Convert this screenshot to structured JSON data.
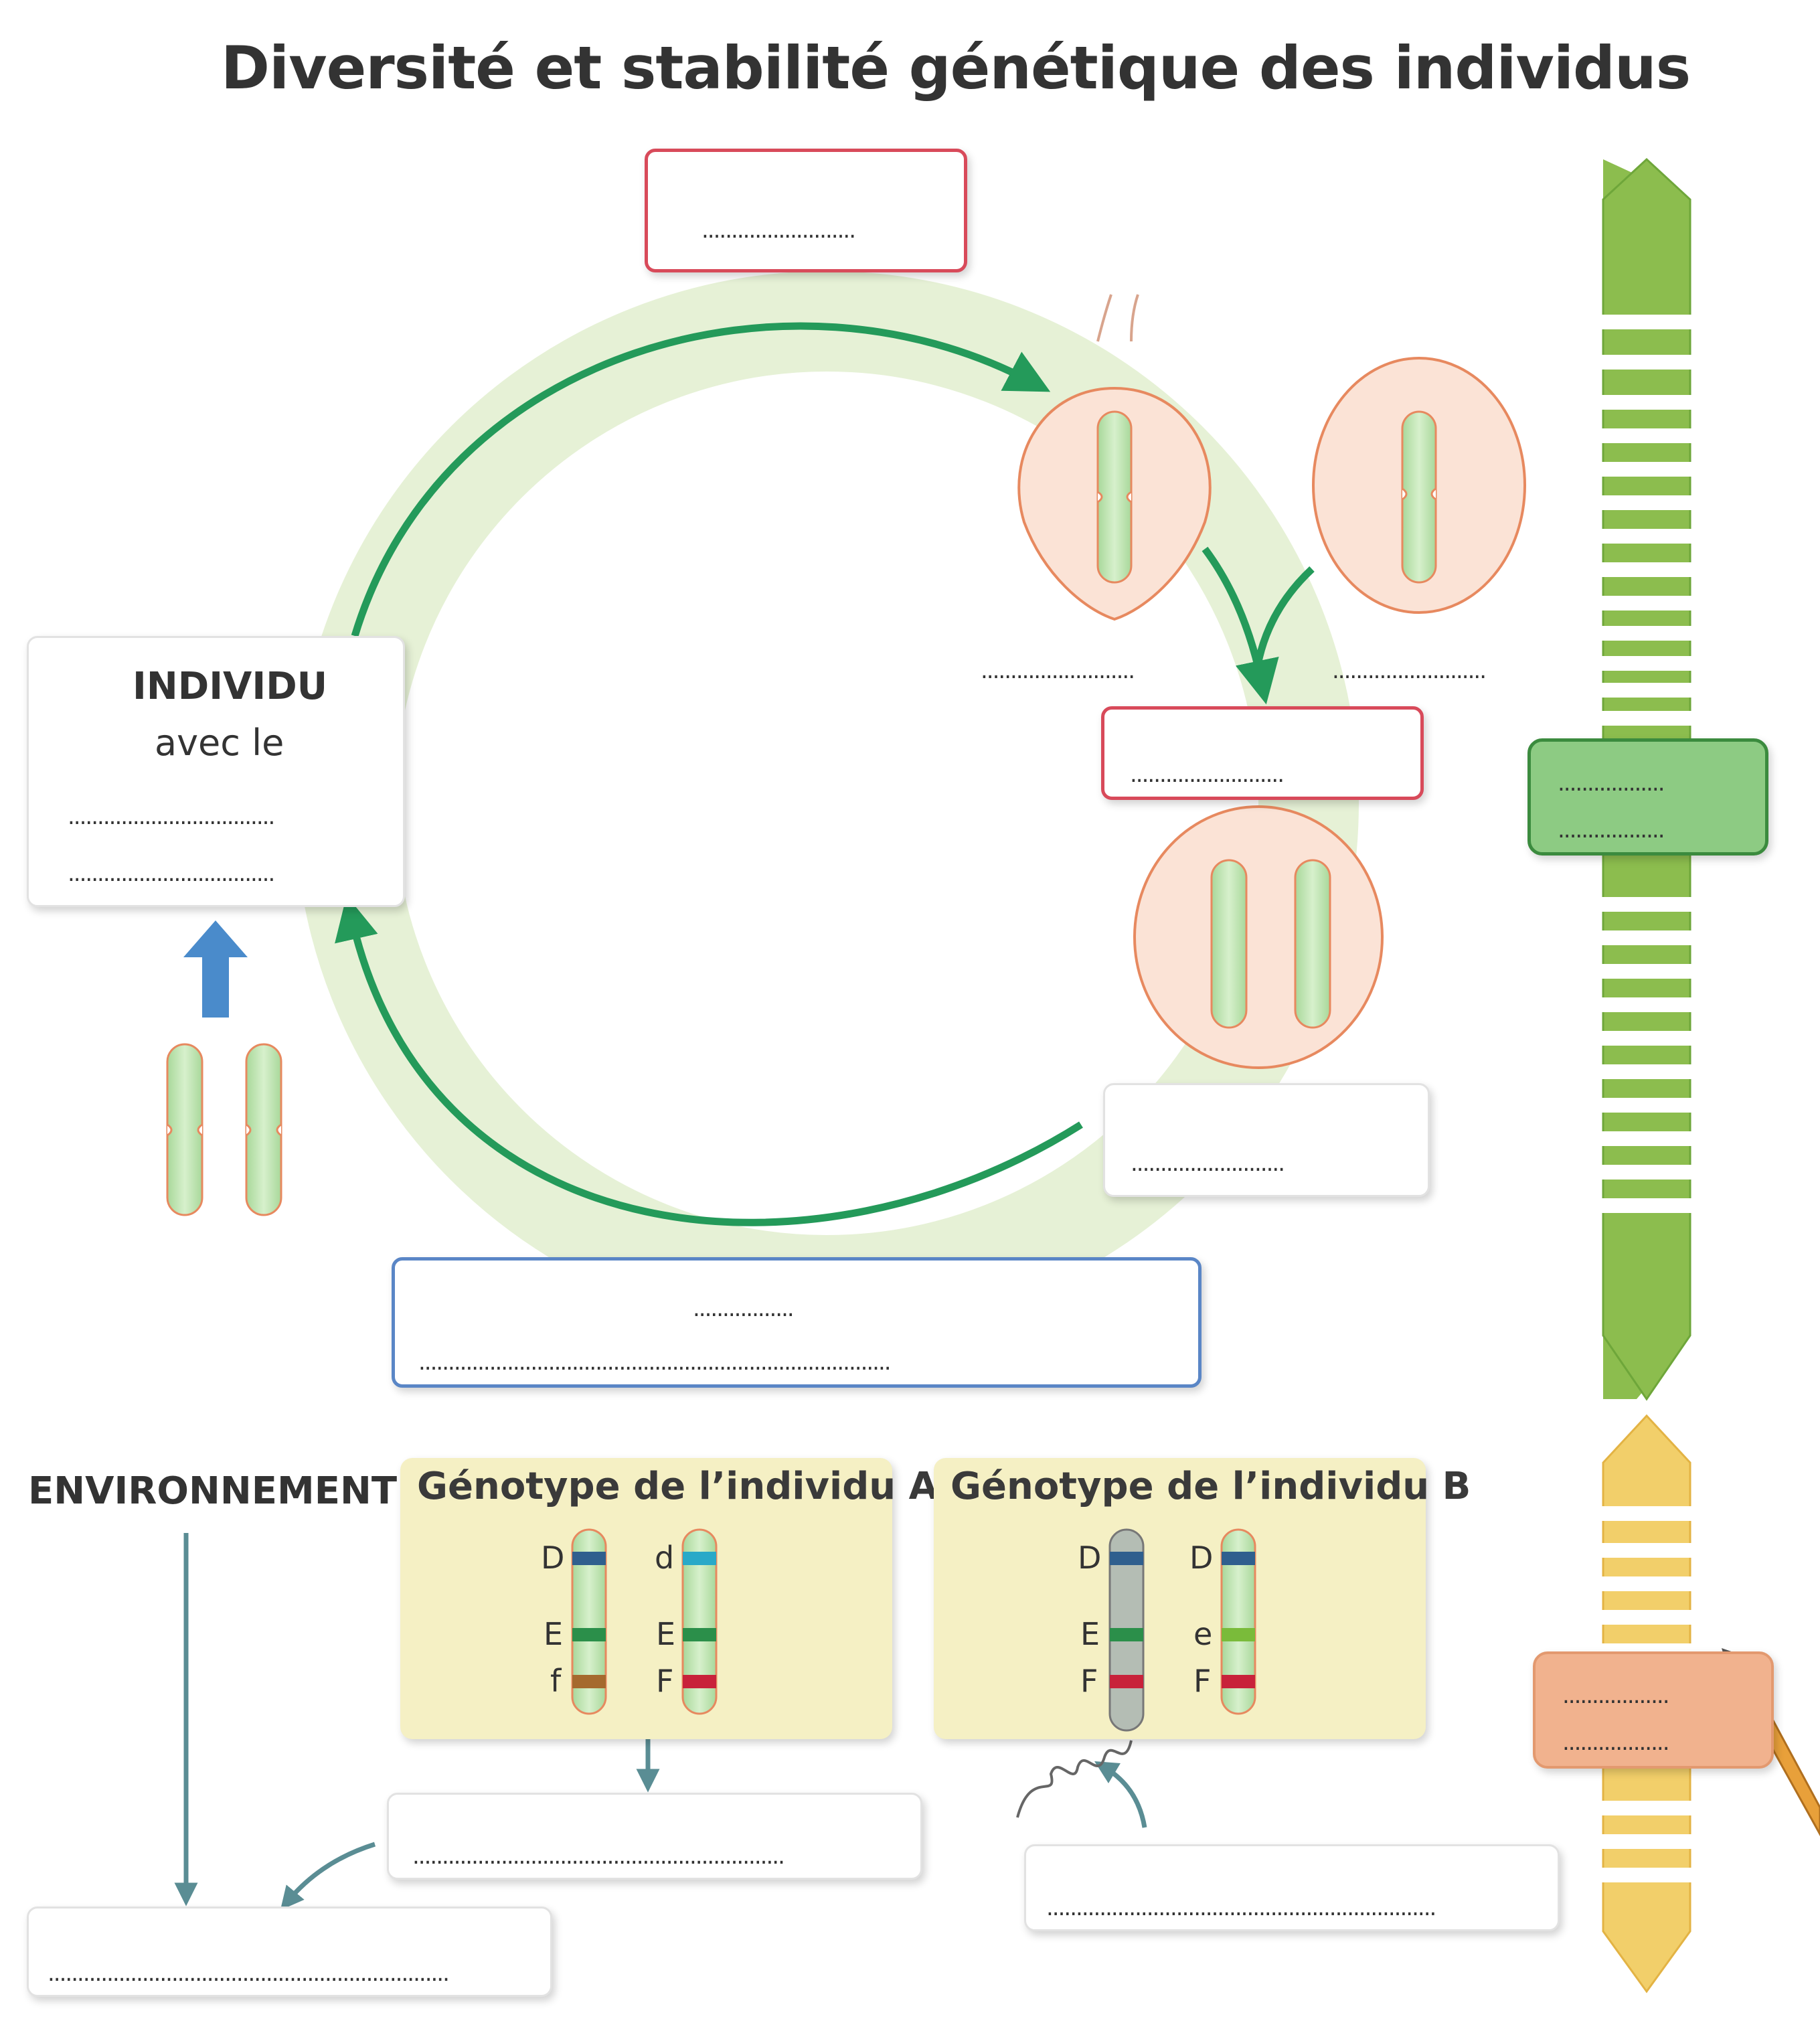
{
  "title": "Diversité et stabilité génétique des individus",
  "individu": {
    "title": "INDIVIDU",
    "subtitle": "avec le",
    "blank1": "...................................",
    "blank2": "..................................."
  },
  "blanks": {
    "top_red": "..........................",
    "left_gamete": "..........................",
    "right_gamete": "..........................",
    "mid_red": "..........................",
    "right_white": "..........................",
    "blue_line1": ".................",
    "blue_line2": "................................................................................",
    "green_line1": "..................",
    "green_line2": "..................",
    "orange_line1": "..................",
    "orange_line2": "..................",
    "below_A": "...............................................................",
    "below_B": "..................................................................",
    "bottom_left": "...................................................................."
  },
  "environnement": "ENVIRONNEMENT",
  "genotype_A": {
    "title": "Génotype de l’individu A",
    "left_alleles": [
      "D",
      "E",
      "f"
    ],
    "right_alleles": [
      "d",
      "E",
      "F"
    ]
  },
  "genotype_B": {
    "title": "Génotype de l’individu B",
    "left_alleles": [
      "D",
      "E",
      "F"
    ],
    "right_alleles": [
      "D",
      "e",
      "F"
    ]
  },
  "colors": {
    "ring": "#e6f1d6",
    "arrow_green": "#249a5a",
    "arrow_blue": "#4a8bcb",
    "arrow_teal": "#5a8d94",
    "band_green": "#8cbd4e",
    "band_yellow": "#f2cf6a",
    "cell_fill": "#fbe3d6",
    "cell_stroke": "#e7895f",
    "chromosome": "#c2e5b7",
    "allele_D": "#2f5f8e",
    "allele_d": "#29a9c8",
    "allele_E": "#2b8f4a",
    "allele_e": "#7abb3a",
    "allele_f": "#a56a2e",
    "allele_F": "#c8223a"
  }
}
